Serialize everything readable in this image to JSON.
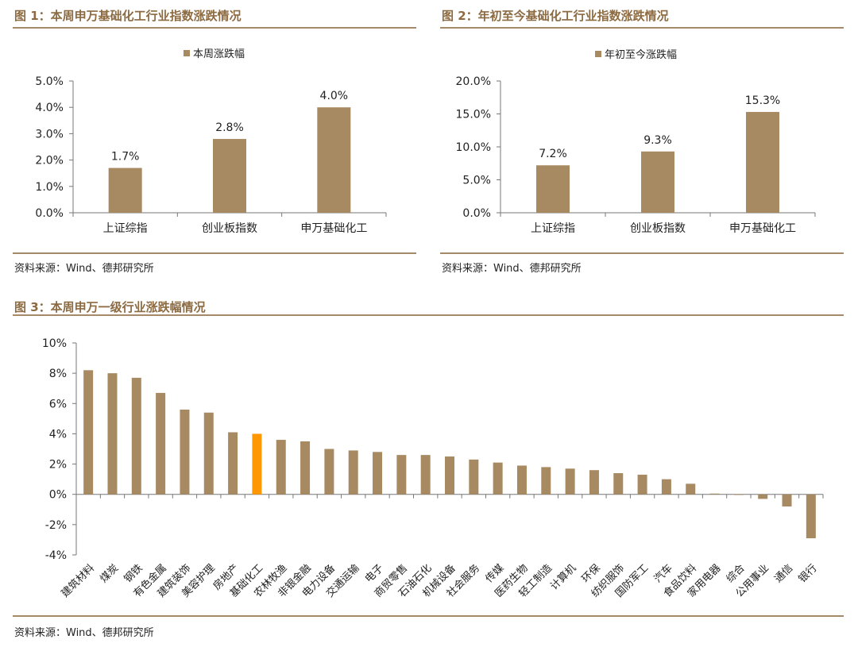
{
  "colors": {
    "bar": "#a88a62",
    "highlight": "#ff9800",
    "accent_text": "#8c6a42",
    "rule": "#a58a6a"
  },
  "figures": {
    "fig1": {
      "title": "图 1：本周申万基础化工行业指数涨跌情况",
      "source": "资料来源：Wind、德邦研究所"
    },
    "fig2": {
      "title": "图 2：年初至今基础化工行业指数涨跌情况",
      "source": "资料来源：Wind、德邦研究所"
    },
    "fig3": {
      "title": "图 3：本周申万一级行业涨跌幅情况",
      "source": "资料来源：Wind、德邦研究所"
    }
  },
  "chart_data": [
    {
      "type": "bar",
      "legend": "本周涨跌幅",
      "categories": [
        "上证综指",
        "创业板指数",
        "申万基础化工"
      ],
      "values": [
        1.7,
        2.8,
        4.0
      ],
      "data_labels": [
        "1.7%",
        "2.8%",
        "4.0%"
      ],
      "yticks": [
        "0.0%",
        "1.0%",
        "2.0%",
        "3.0%",
        "4.0%",
        "5.0%"
      ],
      "ylim": [
        0,
        5
      ]
    },
    {
      "type": "bar",
      "legend": "年初至今涨跌幅",
      "categories": [
        "上证综指",
        "创业板指数",
        "申万基础化工"
      ],
      "values": [
        7.2,
        9.3,
        15.3
      ],
      "data_labels": [
        "7.2%",
        "9.3%",
        "15.3%"
      ],
      "yticks": [
        "0.0%",
        "5.0%",
        "10.0%",
        "15.0%",
        "20.0%"
      ],
      "ylim": [
        0,
        20
      ]
    },
    {
      "type": "bar",
      "categories": [
        "建筑材料",
        "煤炭",
        "钢铁",
        "有色金属",
        "建筑装饰",
        "美容护理",
        "房地产",
        "基础化工",
        "农林牧渔",
        "非银金融",
        "电力设备",
        "交通运输",
        "电子",
        "商贸零售",
        "石油石化",
        "机械设备",
        "社会服务",
        "传媒",
        "医药生物",
        "轻工制造",
        "计算机",
        "环保",
        "纺织服饰",
        "国防军工",
        "汽车",
        "食品饮料",
        "家用电器",
        "综合",
        "公用事业",
        "通信",
        "银行"
      ],
      "values": [
        8.2,
        8.0,
        7.7,
        6.7,
        5.6,
        5.4,
        4.1,
        4.0,
        3.6,
        3.5,
        3.0,
        2.9,
        2.8,
        2.6,
        2.6,
        2.5,
        2.3,
        2.1,
        1.9,
        1.8,
        1.7,
        1.6,
        1.4,
        1.3,
        1.0,
        0.7,
        0.05,
        -0.03,
        -0.3,
        -0.8,
        -2.9
      ],
      "highlight": "基础化工",
      "yticks": [
        "-4%",
        "-2%",
        "0%",
        "2%",
        "4%",
        "6%",
        "8%",
        "10%"
      ],
      "ylim": [
        -4,
        10
      ]
    }
  ]
}
